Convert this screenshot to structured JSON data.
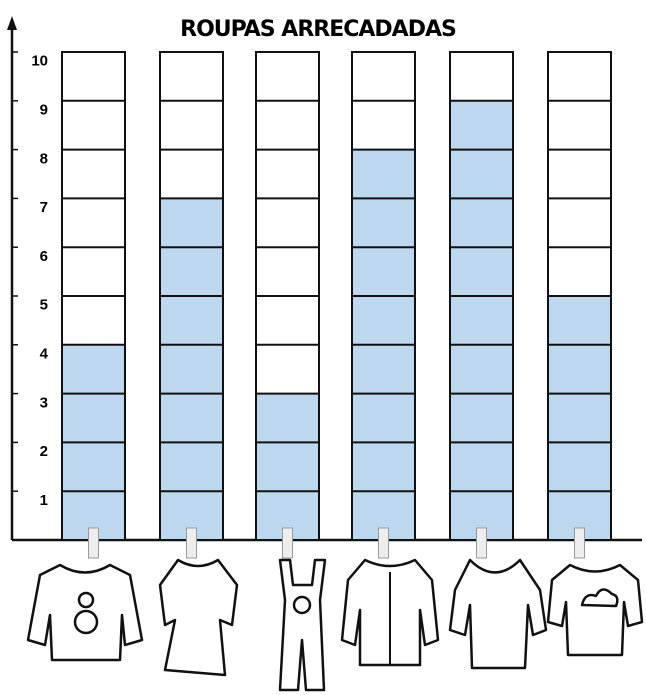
{
  "chart_data": {
    "type": "bar",
    "title": "ROUPAS ARRECADADAS",
    "categories": [
      null,
      null,
      null,
      null,
      null,
      null
    ],
    "values": [
      4,
      7,
      3,
      8,
      9,
      5
    ],
    "color": "#bdd7ee",
    "ylim": [
      0,
      10
    ],
    "yticks": [
      1,
      2,
      3,
      4,
      5,
      6,
      7,
      8,
      9,
      10
    ]
  }
}
